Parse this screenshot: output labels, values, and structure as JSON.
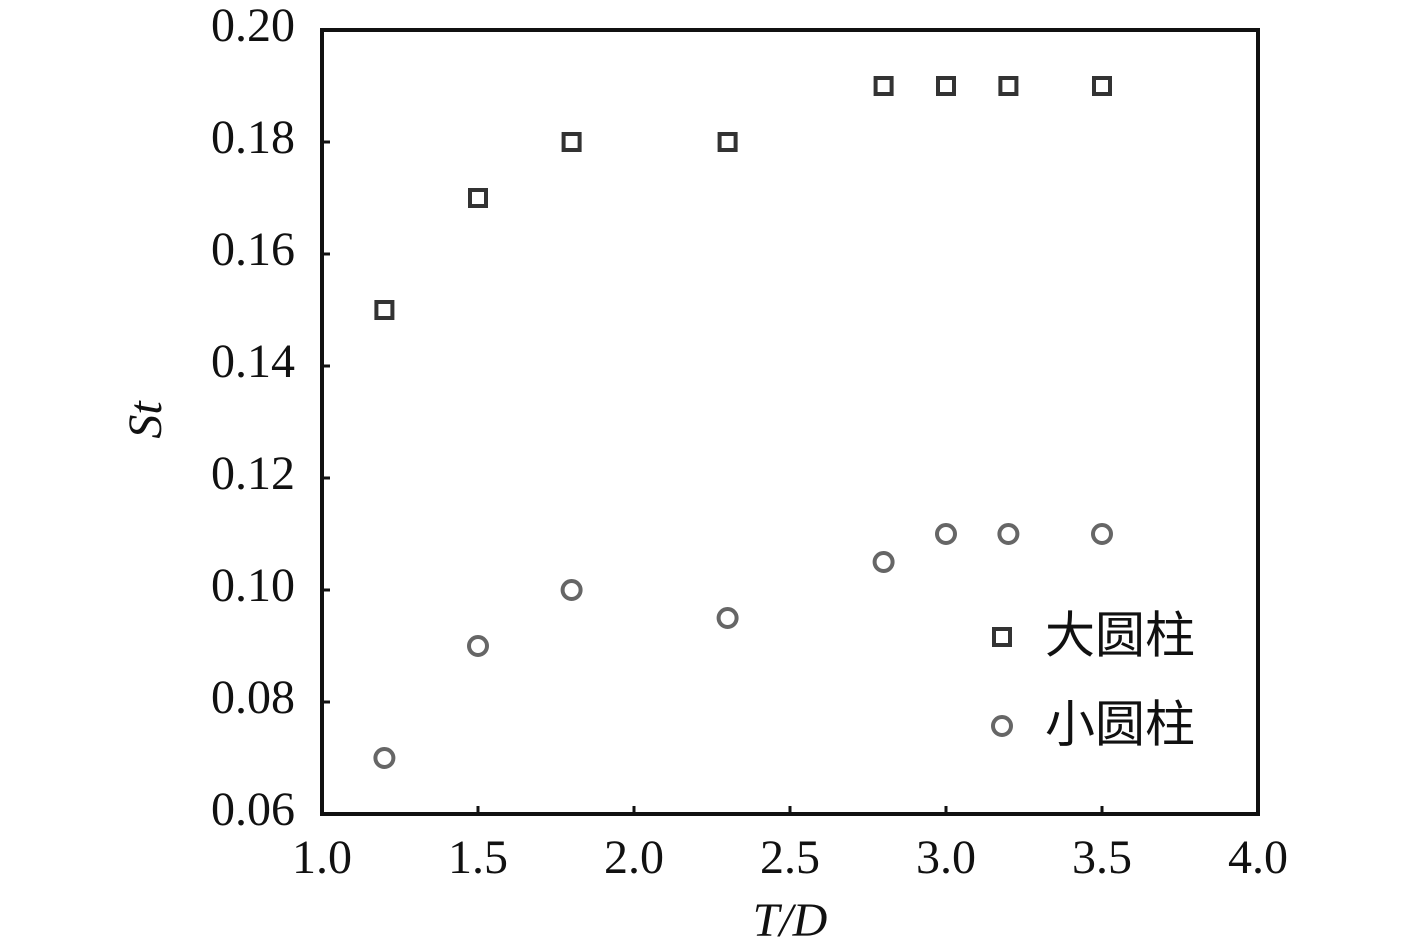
{
  "chart_data": {
    "type": "scatter",
    "xlabel": "T/D",
    "ylabel": "St",
    "xlim": [
      1.0,
      4.0
    ],
    "ylim": [
      0.06,
      0.2
    ],
    "xticks": [
      {
        "value": 1.0,
        "label": "1.0"
      },
      1.5,
      {
        "value": 2.0,
        "label": "2.0"
      },
      2.5,
      {
        "value": 3.0,
        "label": "3.0"
      },
      3.5,
      {
        "value": 4.0,
        "label": "4.0"
      }
    ],
    "yticks": [
      0.06,
      0.08,
      {
        "value": 0.1,
        "label": "0.10"
      },
      0.12,
      0.14,
      0.16,
      0.18,
      {
        "value": 0.2,
        "label": "0.20"
      }
    ],
    "legend": "lower right",
    "series": [
      {
        "name": "大圆柱",
        "marker": "square",
        "color": "#333333",
        "x": [
          1.2,
          1.5,
          1.8,
          2.3,
          2.8,
          3.0,
          3.2,
          3.5
        ],
        "values": [
          0.15,
          0.17,
          0.18,
          0.18,
          0.19,
          0.19,
          0.19,
          0.19
        ]
      },
      {
        "name": "小圆柱",
        "marker": "circle",
        "color": "#666666",
        "x": [
          1.2,
          1.5,
          1.8,
          2.3,
          2.8,
          3.0,
          3.2,
          3.5
        ],
        "values": [
          0.07,
          0.09,
          0.1,
          0.095,
          0.105,
          0.11,
          0.11,
          0.11
        ]
      }
    ]
  }
}
